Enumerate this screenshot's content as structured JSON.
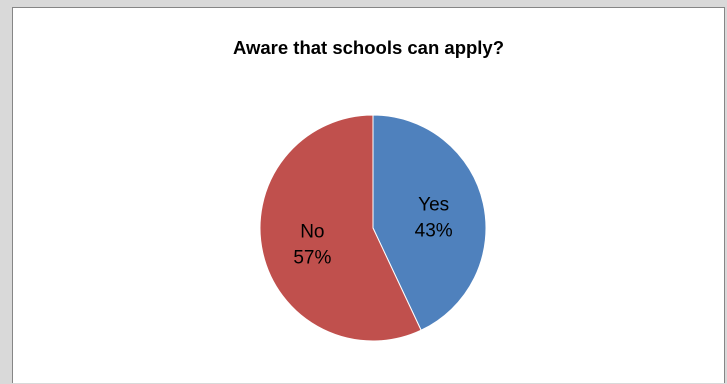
{
  "chart_data": {
    "type": "pie",
    "title": "Aware that schools can apply?",
    "categories": [
      "Yes",
      "No"
    ],
    "values": [
      43,
      57
    ],
    "labels": [
      {
        "category": "Yes",
        "percent": "43%"
      },
      {
        "category": "No",
        "percent": "57%"
      }
    ],
    "colors": [
      "#4f81bd",
      "#c0504d"
    ],
    "legend": "none",
    "data_labels": "inside"
  }
}
